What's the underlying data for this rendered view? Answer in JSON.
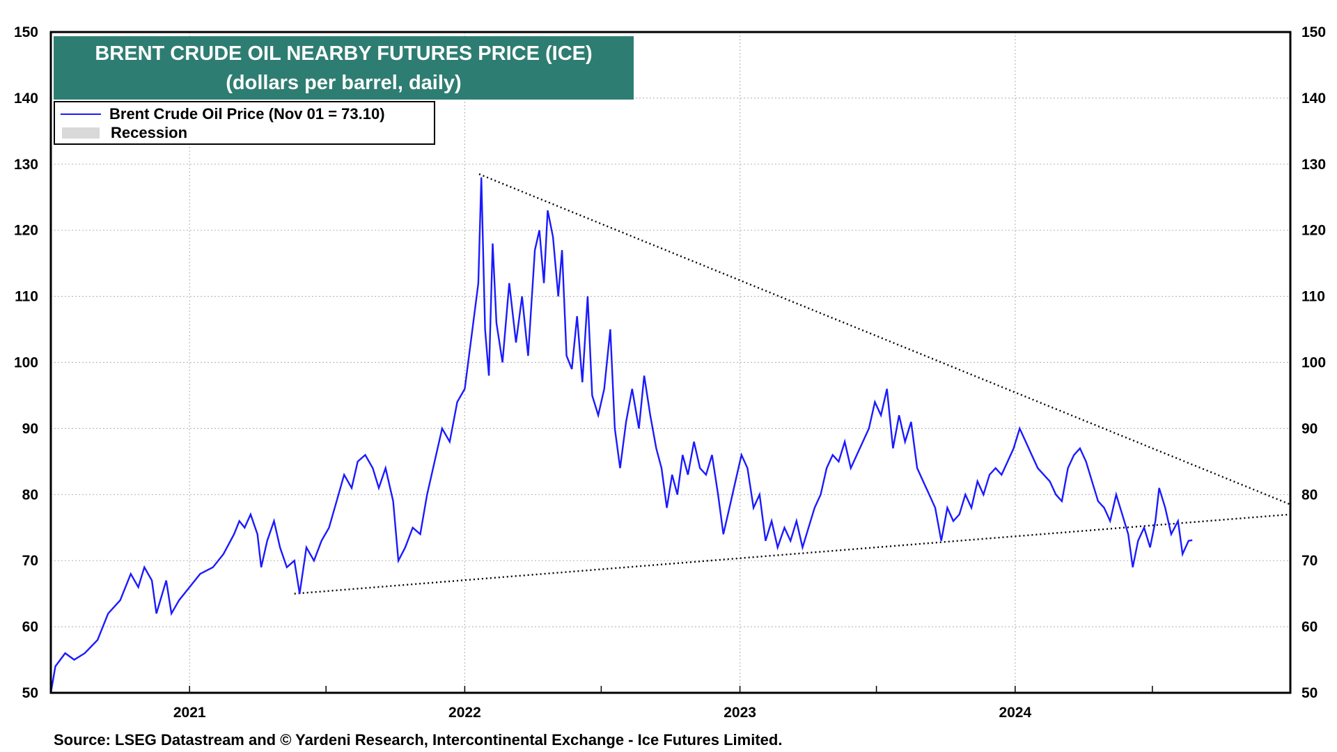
{
  "title": {
    "line1": "BRENT CRUDE OIL NEARBY FUTURES  PRICE (ICE)",
    "line2": "(dollars per barrel, daily)"
  },
  "legend": {
    "series_label": "Brent Crude Oil Price (Nov 01 = 73.10)",
    "recession_label": "Recession"
  },
  "source": "Source: LSEG Datastream and © Yardeni Research, Intercontinental Exchange - Ice Futures Limited.",
  "colors": {
    "series": "#1a1aff",
    "title_bg": "#2e7d72",
    "recession": "#d9d9d9",
    "grid": "#bbbbbb"
  },
  "chart_data": {
    "type": "line",
    "x_range": [
      "2020-07-01",
      "2024-12-31"
    ],
    "ylim": [
      50,
      150
    ],
    "y_ticks": [
      50,
      60,
      70,
      80,
      90,
      100,
      110,
      120,
      130,
      140,
      150
    ],
    "x_ticks": [
      "2021",
      "2022",
      "2023",
      "2024"
    ],
    "grid": true,
    "dual_y_axis": true,
    "legend_position": "top-left",
    "series": [
      {
        "name": "Brent Crude Oil Price (Nov 01 = 73.10)",
        "points": [
          [
            "2020-07-01",
            50
          ],
          [
            "2020-07-07",
            54
          ],
          [
            "2020-07-20",
            56
          ],
          [
            "2020-08-01",
            55
          ],
          [
            "2020-08-15",
            56
          ],
          [
            "2020-09-01",
            58
          ],
          [
            "2020-09-15",
            62
          ],
          [
            "2020-10-01",
            64
          ],
          [
            "2020-10-15",
            68
          ],
          [
            "2020-10-25",
            66
          ],
          [
            "2020-11-02",
            69
          ],
          [
            "2020-11-12",
            67
          ],
          [
            "2020-11-18",
            62
          ],
          [
            "2020-12-01",
            67
          ],
          [
            "2020-12-08",
            62
          ],
          [
            "2020-12-18",
            64
          ],
          [
            "2021-01-01",
            66
          ],
          [
            "2021-01-15",
            68
          ],
          [
            "2021-02-01",
            69
          ],
          [
            "2021-02-15",
            71
          ],
          [
            "2021-03-01",
            74
          ],
          [
            "2021-03-08",
            76
          ],
          [
            "2021-03-15",
            75
          ],
          [
            "2021-03-23",
            77
          ],
          [
            "2021-04-01",
            74
          ],
          [
            "2021-04-06",
            69
          ],
          [
            "2021-04-14",
            73
          ],
          [
            "2021-04-23",
            76
          ],
          [
            "2021-05-01",
            72
          ],
          [
            "2021-05-10",
            69
          ],
          [
            "2021-05-20",
            70
          ],
          [
            "2021-05-27",
            65
          ],
          [
            "2021-06-05",
            72
          ],
          [
            "2021-06-15",
            70
          ],
          [
            "2021-06-25",
            73
          ],
          [
            "2021-07-05",
            75
          ],
          [
            "2021-07-15",
            79
          ],
          [
            "2021-07-25",
            83
          ],
          [
            "2021-08-04",
            81
          ],
          [
            "2021-08-12",
            85
          ],
          [
            "2021-08-22",
            86
          ],
          [
            "2021-09-01",
            84
          ],
          [
            "2021-09-09",
            81
          ],
          [
            "2021-09-18",
            84
          ],
          [
            "2021-09-28",
            79
          ],
          [
            "2021-10-05",
            70
          ],
          [
            "2021-10-14",
            72
          ],
          [
            "2021-10-24",
            75
          ],
          [
            "2021-11-03",
            74
          ],
          [
            "2021-11-12",
            80
          ],
          [
            "2021-11-22",
            85
          ],
          [
            "2021-12-02",
            90
          ],
          [
            "2021-12-12",
            88
          ],
          [
            "2021-12-22",
            94
          ],
          [
            "2022-01-01",
            96
          ],
          [
            "2022-01-10",
            104
          ],
          [
            "2022-01-19",
            112
          ],
          [
            "2022-01-23",
            128
          ],
          [
            "2022-01-28",
            105
          ],
          [
            "2022-02-02",
            98
          ],
          [
            "2022-02-07",
            118
          ],
          [
            "2022-02-12",
            106
          ],
          [
            "2022-02-20",
            100
          ],
          [
            "2022-03-01",
            112
          ],
          [
            "2022-03-10",
            103
          ],
          [
            "2022-03-18",
            110
          ],
          [
            "2022-03-26",
            101
          ],
          [
            "2022-04-04",
            117
          ],
          [
            "2022-04-10",
            120
          ],
          [
            "2022-04-16",
            112
          ],
          [
            "2022-04-21",
            123
          ],
          [
            "2022-04-28",
            119
          ],
          [
            "2022-05-05",
            110
          ],
          [
            "2022-05-10",
            117
          ],
          [
            "2022-05-16",
            101
          ],
          [
            "2022-05-23",
            99
          ],
          [
            "2022-05-30",
            107
          ],
          [
            "2022-06-06",
            97
          ],
          [
            "2022-06-13",
            110
          ],
          [
            "2022-06-19",
            95
          ],
          [
            "2022-06-27",
            92
          ],
          [
            "2022-07-05",
            96
          ],
          [
            "2022-07-13",
            105
          ],
          [
            "2022-07-19",
            90
          ],
          [
            "2022-07-26",
            84
          ],
          [
            "2022-08-03",
            91
          ],
          [
            "2022-08-11",
            96
          ],
          [
            "2022-08-20",
            90
          ],
          [
            "2022-08-27",
            98
          ],
          [
            "2022-09-04",
            92
          ],
          [
            "2022-09-12",
            87
          ],
          [
            "2022-09-19",
            84
          ],
          [
            "2022-09-26",
            78
          ],
          [
            "2022-10-03",
            83
          ],
          [
            "2022-10-10",
            80
          ],
          [
            "2022-10-17",
            86
          ],
          [
            "2022-10-24",
            83
          ],
          [
            "2022-11-01",
            88
          ],
          [
            "2022-11-09",
            84
          ],
          [
            "2022-11-17",
            83
          ],
          [
            "2022-11-25",
            86
          ],
          [
            "2022-12-03",
            80
          ],
          [
            "2022-12-10",
            74
          ],
          [
            "2022-12-18",
            78
          ],
          [
            "2022-12-26",
            82
          ],
          [
            "2023-01-03",
            86
          ],
          [
            "2023-01-11",
            84
          ],
          [
            "2023-01-19",
            78
          ],
          [
            "2023-01-27",
            80
          ],
          [
            "2023-02-04",
            73
          ],
          [
            "2023-02-12",
            76
          ],
          [
            "2023-02-20",
            72
          ],
          [
            "2023-03-01",
            75
          ],
          [
            "2023-03-09",
            73
          ],
          [
            "2023-03-17",
            76
          ],
          [
            "2023-03-25",
            72
          ],
          [
            "2023-04-02",
            75
          ],
          [
            "2023-04-10",
            78
          ],
          [
            "2023-04-18",
            80
          ],
          [
            "2023-04-26",
            84
          ],
          [
            "2023-05-04",
            86
          ],
          [
            "2023-05-12",
            85
          ],
          [
            "2023-05-20",
            88
          ],
          [
            "2023-05-28",
            84
          ],
          [
            "2023-06-05",
            86
          ],
          [
            "2023-06-13",
            88
          ],
          [
            "2023-06-21",
            90
          ],
          [
            "2023-06-29",
            94
          ],
          [
            "2023-07-07",
            92
          ],
          [
            "2023-07-15",
            96
          ],
          [
            "2023-07-23",
            87
          ],
          [
            "2023-07-31",
            92
          ],
          [
            "2023-08-08",
            88
          ],
          [
            "2023-08-16",
            91
          ],
          [
            "2023-08-24",
            84
          ],
          [
            "2023-09-01",
            82
          ],
          [
            "2023-09-09",
            80
          ],
          [
            "2023-09-17",
            78
          ],
          [
            "2023-09-25",
            73
          ],
          [
            "2023-10-03",
            78
          ],
          [
            "2023-10-11",
            76
          ],
          [
            "2023-10-19",
            77
          ],
          [
            "2023-10-27",
            80
          ],
          [
            "2023-11-04",
            78
          ],
          [
            "2023-11-12",
            82
          ],
          [
            "2023-11-20",
            80
          ],
          [
            "2023-11-28",
            83
          ],
          [
            "2023-12-06",
            84
          ],
          [
            "2023-12-14",
            83
          ],
          [
            "2023-12-22",
            85
          ],
          [
            "2023-12-30",
            87
          ],
          [
            "2024-01-07",
            90
          ],
          [
            "2024-01-15",
            88
          ],
          [
            "2024-01-23",
            86
          ],
          [
            "2024-01-31",
            84
          ],
          [
            "2024-02-08",
            83
          ],
          [
            "2024-02-16",
            82
          ],
          [
            "2024-02-24",
            80
          ],
          [
            "2024-03-03",
            79
          ],
          [
            "2024-03-11",
            84
          ],
          [
            "2024-03-19",
            86
          ],
          [
            "2024-03-27",
            87
          ],
          [
            "2024-04-04",
            85
          ],
          [
            "2024-04-12",
            82
          ],
          [
            "2024-04-20",
            79
          ],
          [
            "2024-04-28",
            78
          ],
          [
            "2024-05-06",
            76
          ],
          [
            "2024-05-14",
            80
          ],
          [
            "2024-05-22",
            77
          ],
          [
            "2024-05-30",
            74
          ],
          [
            "2024-06-05",
            69
          ],
          [
            "2024-06-12",
            73
          ],
          [
            "2024-06-20",
            75
          ],
          [
            "2024-06-28",
            72
          ],
          [
            "2024-07-05",
            76
          ],
          [
            "2024-07-10",
            81
          ],
          [
            "2024-07-18",
            78
          ],
          [
            "2024-07-26",
            74
          ],
          [
            "2024-08-04",
            76
          ],
          [
            "2024-08-10",
            71
          ],
          [
            "2024-08-18",
            73
          ],
          [
            "2024-08-23",
            73.1
          ]
        ]
      }
    ],
    "trendlines": [
      {
        "name": "upper",
        "from": [
          "2022-01-20",
          128.5
        ],
        "to": [
          "2024-12-31",
          78.5
        ]
      },
      {
        "name": "lower",
        "from": [
          "2021-05-20",
          65
        ],
        "to": [
          "2024-12-31",
          77
        ]
      }
    ]
  }
}
